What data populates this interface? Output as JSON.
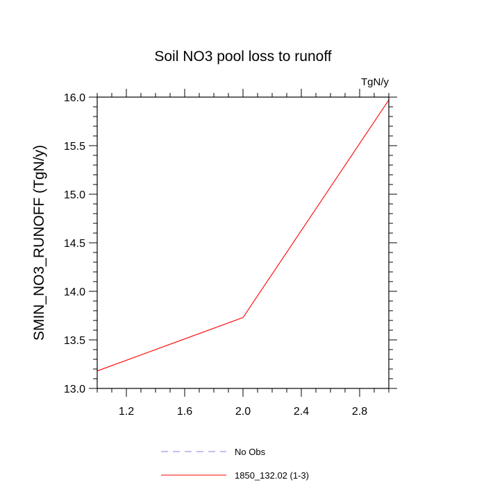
{
  "chart_data": {
    "type": "line",
    "title": "Soil NO3 pool loss to runoff",
    "units_label": "TgN/y",
    "ylabel": "SMIN_NO3_RUNOFF  (TgN/y)",
    "xlabel": "",
    "xlim": [
      1.0,
      3.0
    ],
    "ylim": [
      13.0,
      16.0
    ],
    "x_ticks": [
      1.2,
      1.6,
      2.0,
      2.4,
      2.8
    ],
    "x_tick_labels": [
      "1.2",
      "1.6",
      "2.0",
      "2.4",
      "2.8"
    ],
    "y_ticks": [
      13.0,
      13.5,
      14.0,
      14.5,
      15.0,
      15.5,
      16.0
    ],
    "y_tick_labels": [
      "13.0",
      "13.5",
      "14.0",
      "14.5",
      "15.0",
      "15.5",
      "16.0"
    ],
    "grid": false,
    "legend_position": "bottom-center",
    "series": [
      {
        "name": "No Obs",
        "color": "#8080e0",
        "dashed": true,
        "x": [],
        "y": []
      },
      {
        "name": "1850_132.02 (1-3)",
        "color": "#ff0000",
        "dashed": false,
        "x": [
          1.0,
          2.0,
          3.0
        ],
        "y": [
          13.18,
          13.73,
          15.97
        ]
      }
    ]
  }
}
